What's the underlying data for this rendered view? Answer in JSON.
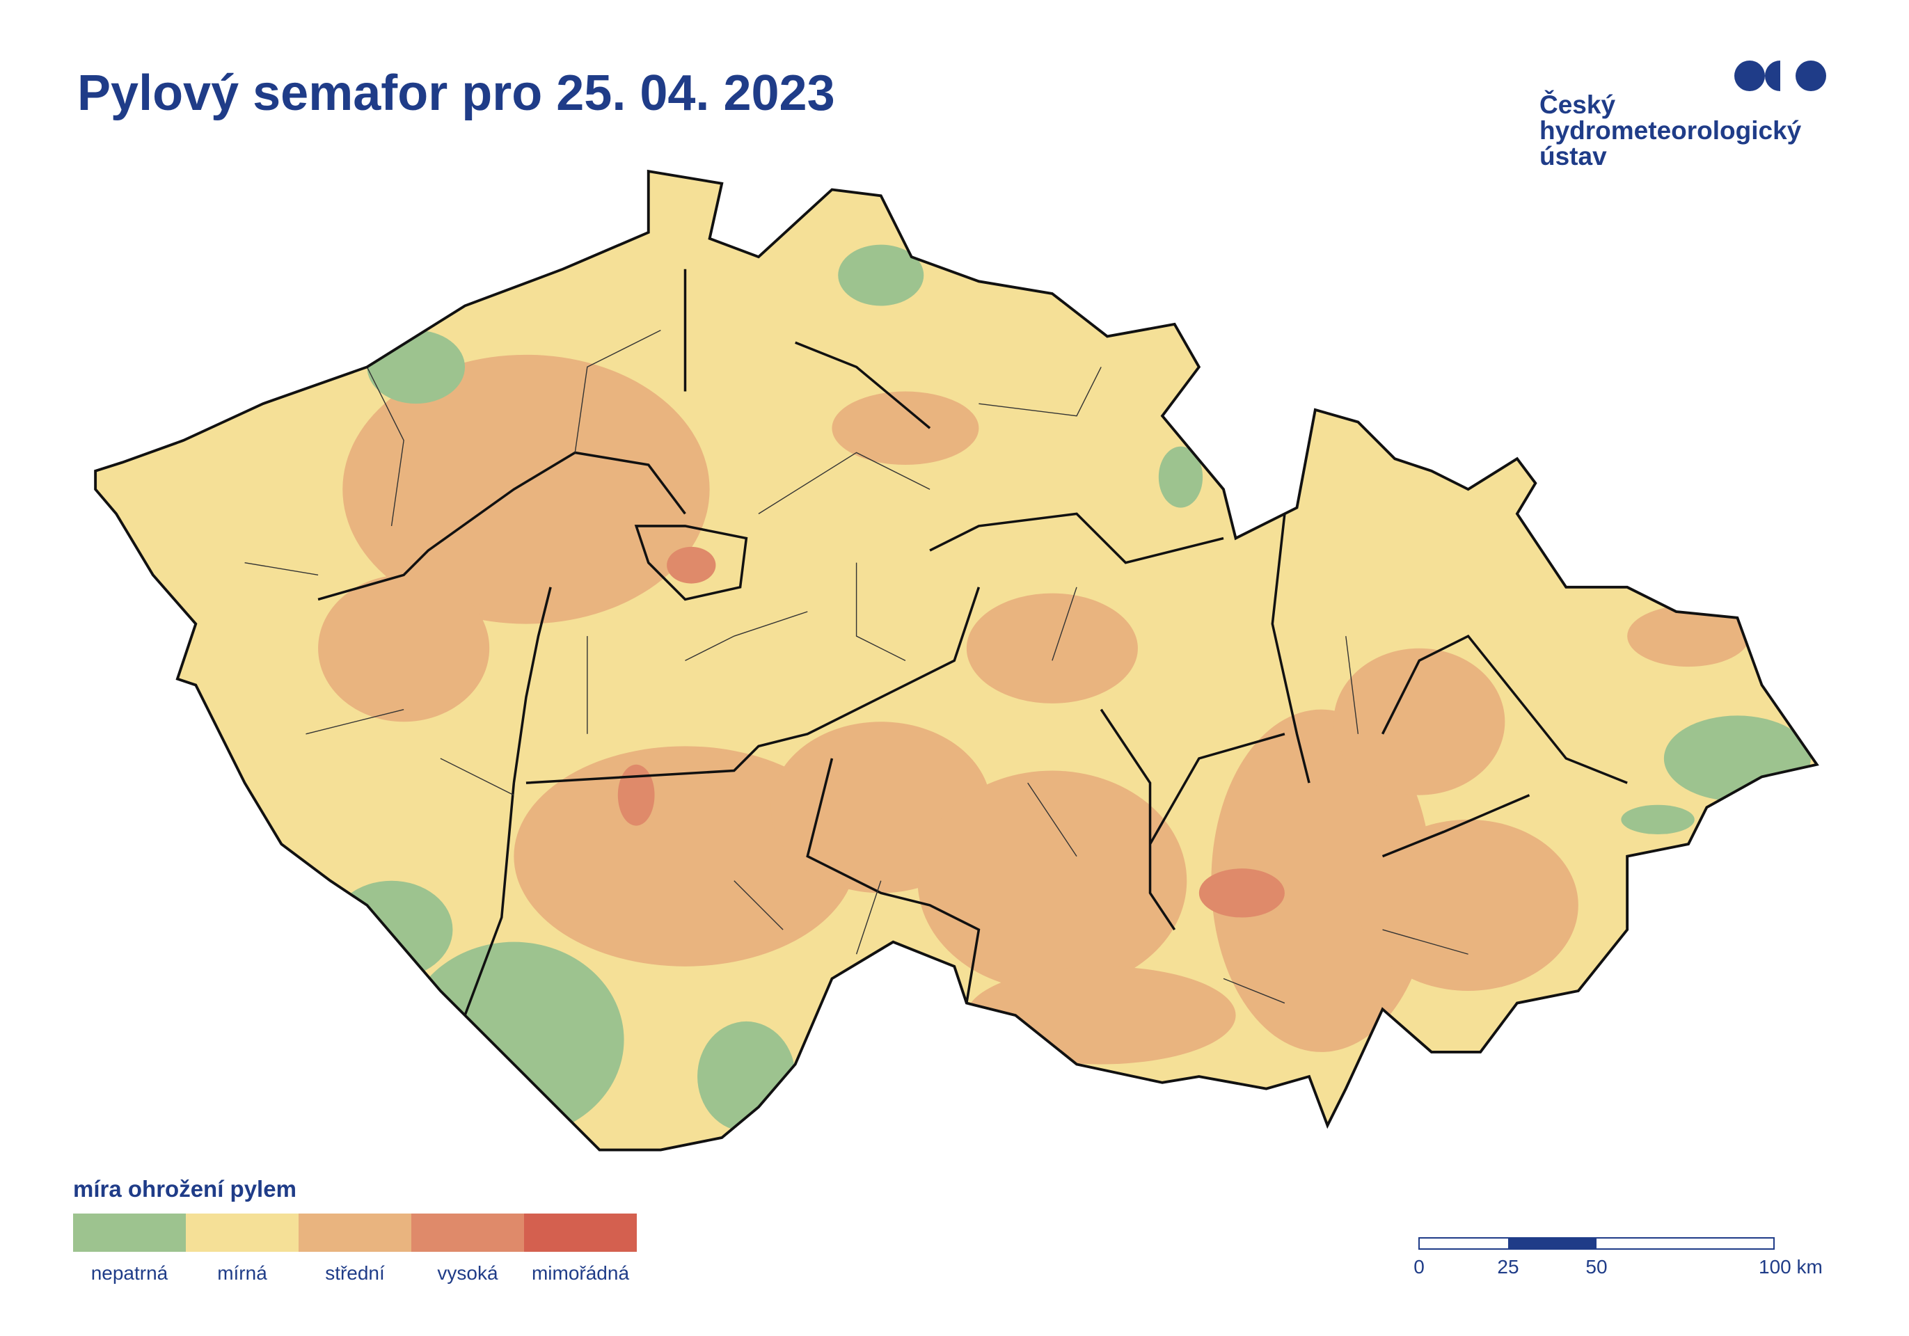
{
  "header": {
    "title": "Pylový semafor pro 25. 04. 2023"
  },
  "logo": {
    "lines": [
      "Český",
      "hydrometeorologický",
      "ústav"
    ]
  },
  "legend": {
    "title": "míra ohrožení pylem",
    "items": [
      {
        "label": "nepatrná",
        "color": "#9dc38f"
      },
      {
        "label": "mírná",
        "color": "#f5e097"
      },
      {
        "label": "střední",
        "color": "#e9b47f"
      },
      {
        "label": "vysoká",
        "color": "#df8a6a"
      },
      {
        "label": "mimořádná",
        "color": "#d4604f"
      }
    ]
  },
  "scale_bar": {
    "labels": [
      "0",
      "25",
      "50",
      "100 km"
    ]
  }
}
